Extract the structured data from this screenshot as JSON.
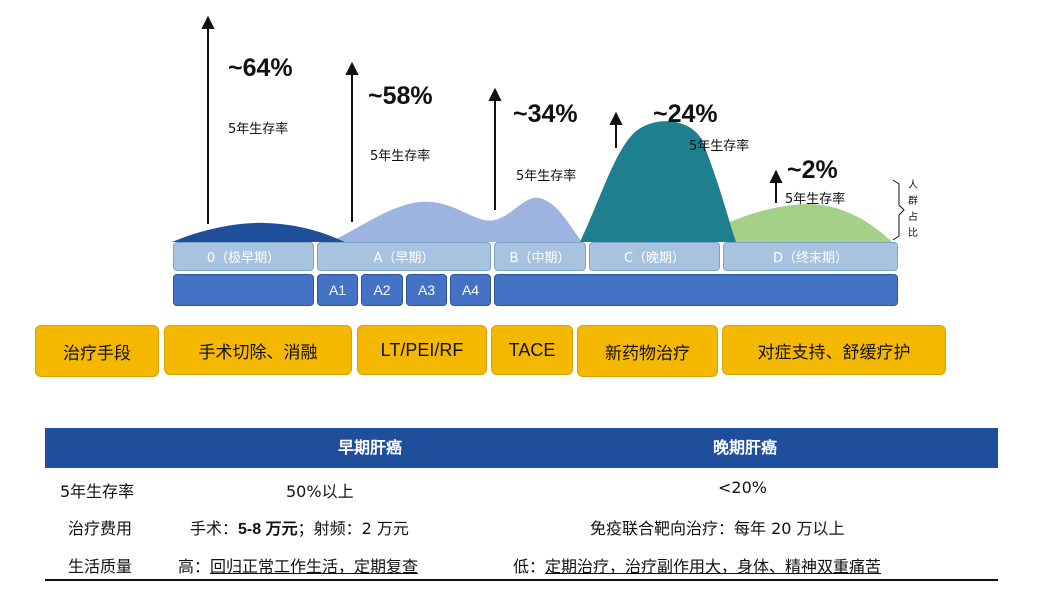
{
  "chart_data": {
    "type": "area",
    "stages": [
      "0（极早期）",
      "A（早期）",
      "B（中期）",
      "C（晚期）",
      "D（终末期）"
    ],
    "substages": [
      "A1",
      "A2",
      "A3",
      "A4"
    ],
    "survival": [
      {
        "stage": "0",
        "value": "~64%",
        "label": "5年生存率"
      },
      {
        "stage": "A",
        "value": "~58%",
        "label": "5年生存率"
      },
      {
        "stage": "B",
        "value": "~34%",
        "label": "5年生存率"
      },
      {
        "stage": "C",
        "value": "~24%",
        "label": "5年生存率"
      },
      {
        "stage": "D",
        "value": "~2%",
        "label": "5年生存率"
      }
    ],
    "side_label": [
      "人",
      "群",
      "占",
      "比"
    ],
    "colors": {
      "stage0": "#1f4e9a",
      "stageA": "#8fa9dd",
      "stageB": "#9db4e0",
      "stageC": "#1e7f8f",
      "stageD": "#a5d08a"
    }
  },
  "treatments": {
    "label": "治疗手段",
    "items": [
      "手术切除、消融",
      "LT/PEI/RF",
      "TACE",
      "新药物治疗",
      "对症支持、舒缓疗护"
    ]
  },
  "table": {
    "headers": [
      "早期肝癌",
      "晚期肝癌"
    ],
    "rows": [
      {
        "label": "5年生存率",
        "early": "50%以上",
        "late": "<20%"
      },
      {
        "label": "治疗费用",
        "early_prefix": "手术：",
        "early_bold": "5-8 万元",
        "early_suffix": "；射频：2 万元",
        "late": "免疫联合靶向治疗：每年 20 万以上"
      },
      {
        "label": "生活质量",
        "early_prefix": "高：",
        "early": "回归正常工作生活，定期复查",
        "late_prefix": "低：",
        "late": "定期治疗，治疗副作用大，身体、精神双重痛苦"
      }
    ]
  }
}
